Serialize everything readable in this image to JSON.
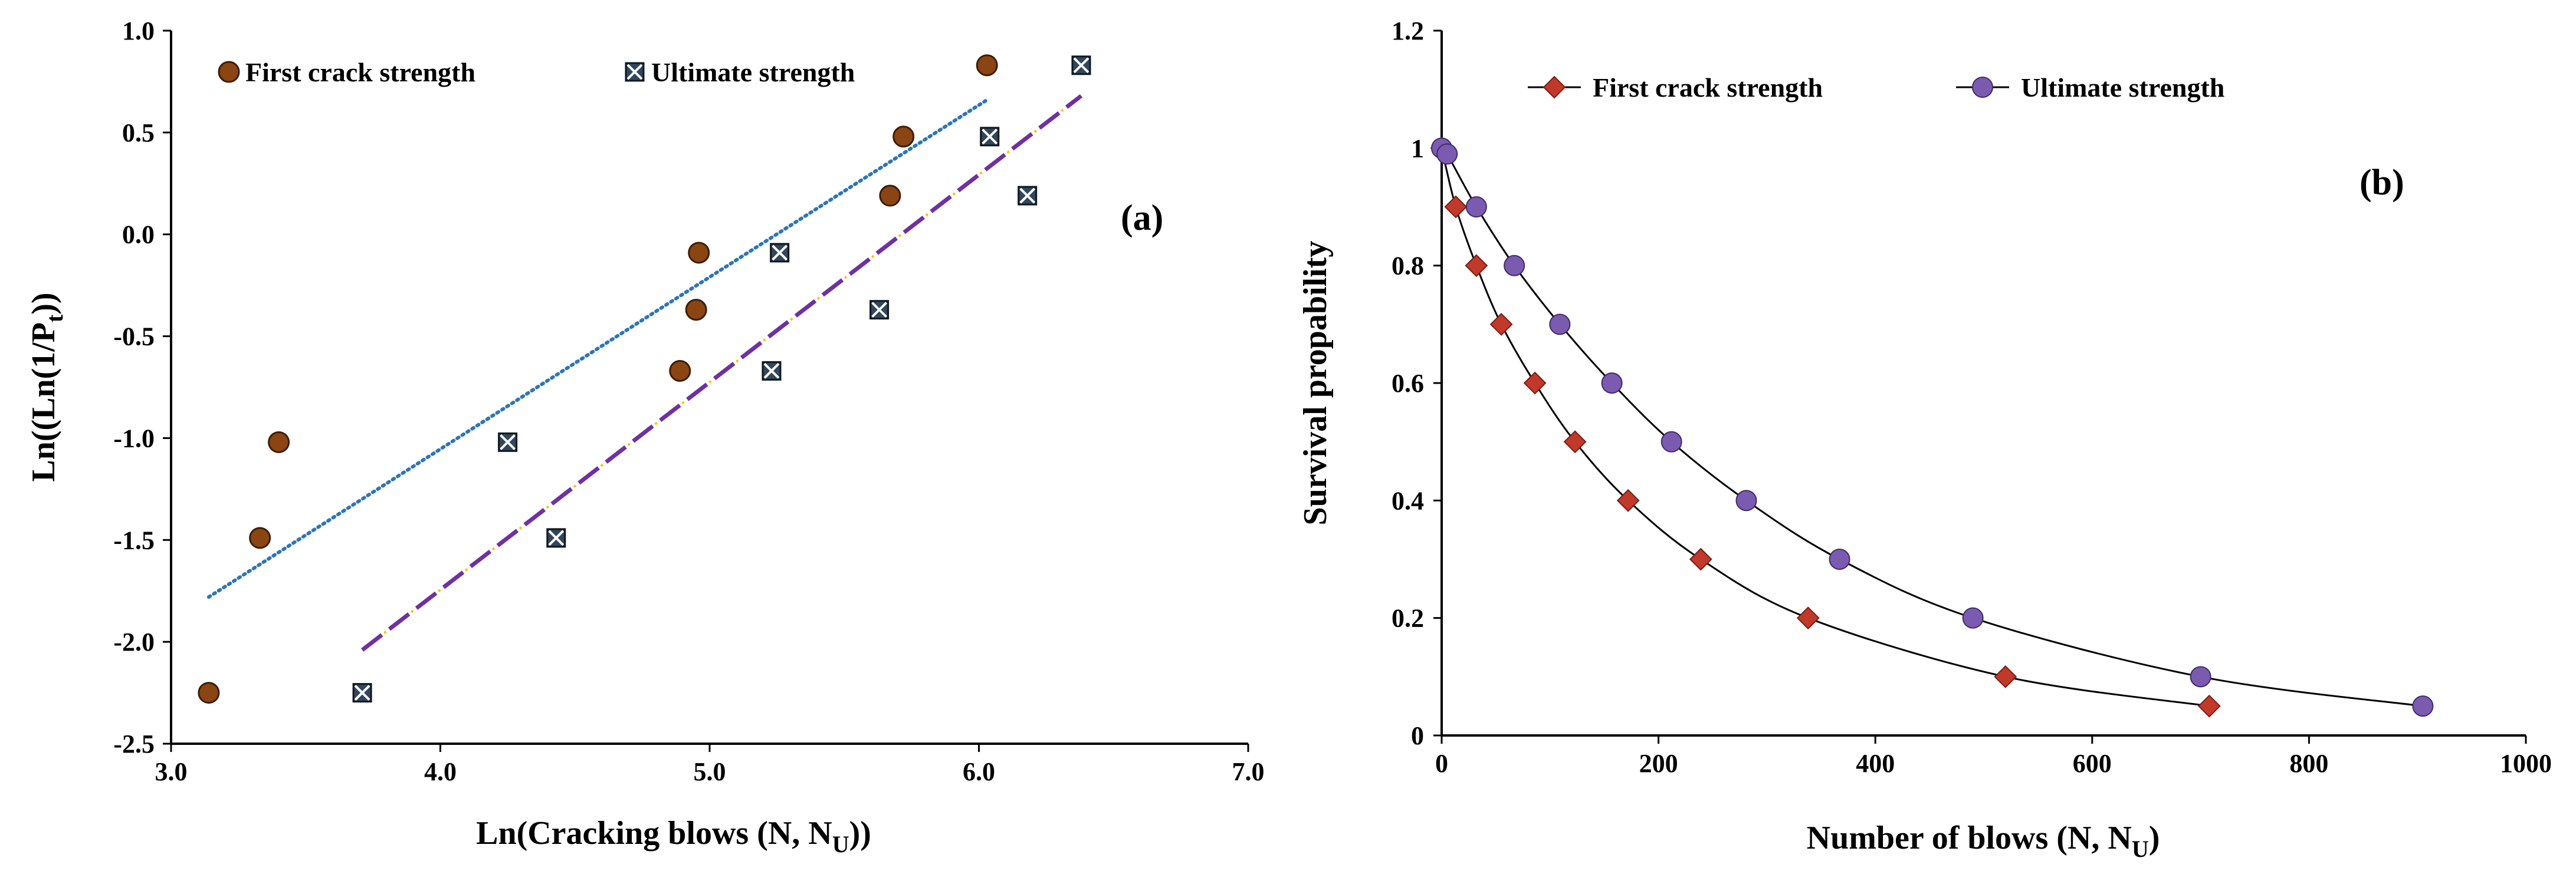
{
  "chart_data": [
    {
      "type": "scatter",
      "panel_label": "(a)",
      "xlabel": "Ln(Cracking blows (N, N",
      "xlabel_sub": "U",
      "xlabel_tail": "))",
      "ylabel": "Ln((Ln(1/P",
      "ylabel_sub": "t",
      "ylabel_tail": "))",
      "xlim": [
        3.0,
        7.0
      ],
      "ylim": [
        -2.5,
        1.0
      ],
      "xticks": [
        "3.0",
        "4.0",
        "5.0",
        "6.0",
        "7.0"
      ],
      "yticks": [
        "1.0",
        "0.5",
        "0.0",
        "-0.5",
        "-1.0",
        "-1.5",
        "-2.0",
        "-2.5"
      ],
      "grid": false,
      "legend_position": "top",
      "series": [
        {
          "name": "First crack strength",
          "marker": "circle",
          "color": "#8B4513",
          "x": [
            3.14,
            3.33,
            3.4,
            4.89,
            4.95,
            4.96,
            5.67,
            5.72,
            6.03
          ],
          "y": [
            -2.25,
            -1.49,
            -1.02,
            -0.67,
            -0.37,
            -0.09,
            0.19,
            0.48,
            0.83
          ],
          "trendline": {
            "style": "dotted",
            "color": "#2E75B6",
            "x": [
              3.14,
              6.03
            ],
            "y": [
              -1.78,
              0.66
            ]
          }
        },
        {
          "name": "Ultimate strength",
          "marker": "x-square",
          "color": "#1f2d3d",
          "x": [
            3.71,
            4.25,
            4.43,
            5.23,
            5.26,
            5.63,
            6.04,
            6.18,
            6.38
          ],
          "y": [
            -2.25,
            -1.02,
            -1.49,
            -0.67,
            -0.09,
            -0.37,
            0.48,
            0.19,
            0.83
          ],
          "trendline": {
            "style": "long-dash-dot",
            "color": "#7030A0",
            "accent": "#FFC000",
            "x": [
              3.71,
              6.38
            ],
            "y": [
              -2.04,
              0.68
            ]
          }
        }
      ]
    },
    {
      "type": "line",
      "panel_label": "(b)",
      "xlabel": "Number of blows (N, N",
      "xlabel_sub": "U",
      "xlabel_tail": ")",
      "ylabel": "Survival propability",
      "xlim": [
        0,
        1000
      ],
      "ylim": [
        0,
        1.2
      ],
      "xticks": [
        "0",
        "200",
        "400",
        "600",
        "800",
        "1000"
      ],
      "yticks": [
        "1.2",
        "1",
        "0.8",
        "0.6",
        "0.4",
        "0.2",
        "0"
      ],
      "grid": false,
      "legend_position": "top",
      "series": [
        {
          "name": "First crack strength",
          "marker": "diamond",
          "color": "#C0392B",
          "x": [
            0,
            13,
            32,
            55,
            86,
            123,
            172,
            239,
            338,
            520,
            708
          ],
          "y": [
            1.0,
            0.9,
            0.8,
            0.7,
            0.6,
            0.5,
            0.4,
            0.3,
            0.2,
            0.1,
            0.05
          ]
        },
        {
          "name": "Ultimate strength",
          "marker": "circle",
          "color": "#7B5BB0",
          "x": [
            0,
            5,
            32,
            67,
            109,
            157,
            212,
            281,
            367,
            490,
            700,
            905
          ],
          "y": [
            1.0,
            0.99,
            0.9,
            0.8,
            0.7,
            0.6,
            0.5,
            0.4,
            0.3,
            0.2,
            0.1,
            0.05
          ]
        }
      ]
    }
  ]
}
